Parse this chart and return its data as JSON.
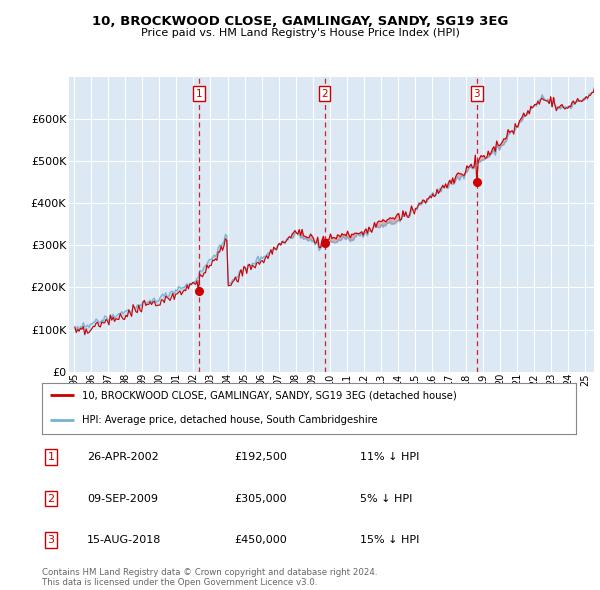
{
  "title": "10, BROCKWOOD CLOSE, GAMLINGAY, SANDY, SG19 3EG",
  "subtitle": "Price paid vs. HM Land Registry's House Price Index (HPI)",
  "ylim": [
    0,
    700000
  ],
  "yticks": [
    0,
    100000,
    200000,
    300000,
    400000,
    500000,
    600000
  ],
  "ytick_labels": [
    "£0",
    "£100K",
    "£200K",
    "£300K",
    "£400K",
    "£500K",
    "£600K"
  ],
  "bg_color": "#dce9f5",
  "grid_color": "#ffffff",
  "property_color": "#cc0000",
  "hpi_color": "#7ab0d4",
  "legend_property": "10, BROCKWOOD CLOSE, GAMLINGAY, SANDY, SG19 3EG (detached house)",
  "legend_hpi": "HPI: Average price, detached house, South Cambridgeshire",
  "footer": "Contains HM Land Registry data © Crown copyright and database right 2024.\nThis data is licensed under the Open Government Licence v3.0.",
  "sale_years": [
    2002.32,
    2009.69,
    2018.62
  ],
  "sale_prices": [
    192500,
    305000,
    450000
  ],
  "sale_labels": [
    "1",
    "2",
    "3"
  ],
  "sale_table": [
    {
      "label": "1",
      "date": "26-APR-2002",
      "price": "£192,500",
      "pct": "11% ↓ HPI"
    },
    {
      "label": "2",
      "date": "09-SEP-2009",
      "price": "£305,000",
      "pct": "5% ↓ HPI"
    },
    {
      "label": "3",
      "date": "15-AUG-2018",
      "price": "£450,000",
      "pct": "15% ↓ HPI"
    }
  ]
}
